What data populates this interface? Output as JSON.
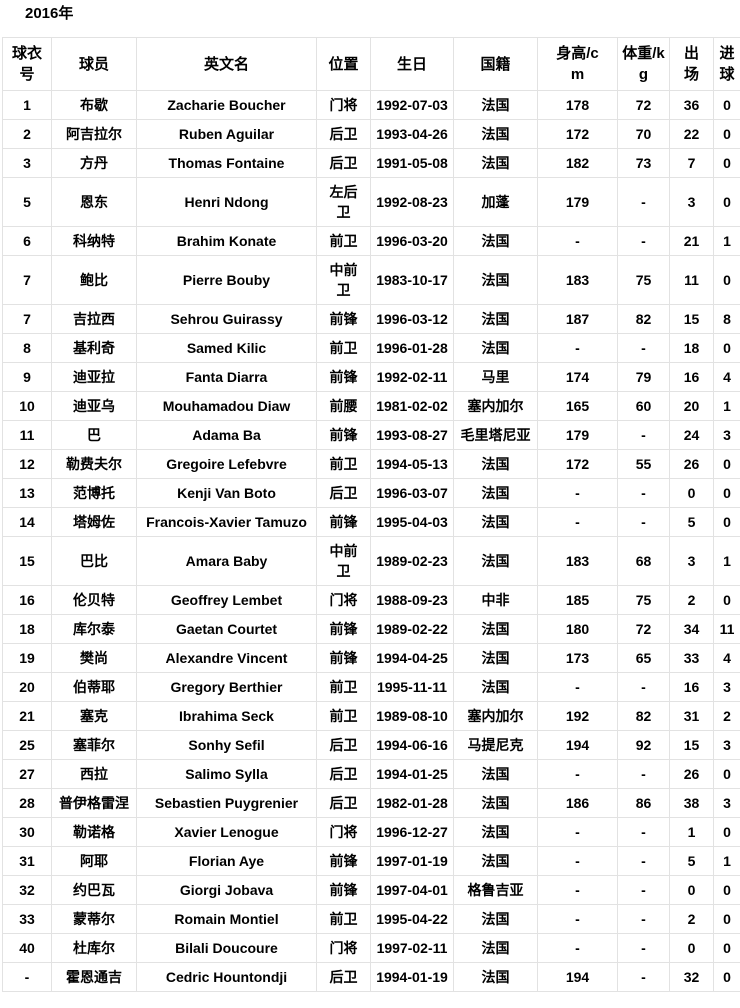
{
  "page": {
    "title": "2016年"
  },
  "table": {
    "columns": [
      {
        "key": "jersey",
        "label": "球衣\n号"
      },
      {
        "key": "player",
        "label": "球员"
      },
      {
        "key": "english_name",
        "label": "英文名"
      },
      {
        "key": "position",
        "label": "位置"
      },
      {
        "key": "birthday",
        "label": "生日"
      },
      {
        "key": "nationality",
        "label": "国籍"
      },
      {
        "key": "height",
        "label": "身高/c\nm"
      },
      {
        "key": "weight",
        "label": "体重/k\ng"
      },
      {
        "key": "appearances",
        "label": "出\n场"
      },
      {
        "key": "goals",
        "label": "进\n球"
      }
    ],
    "rows": [
      [
        "1",
        "布歇",
        "Zacharie Boucher",
        "门将",
        "1992-07-03",
        "法国",
        "178",
        "72",
        "36",
        "0"
      ],
      [
        "2",
        "阿吉拉尔",
        "Ruben Aguilar",
        "后卫",
        "1993-04-26",
        "法国",
        "172",
        "70",
        "22",
        "0"
      ],
      [
        "3",
        "方丹",
        "Thomas Fontaine",
        "后卫",
        "1991-05-08",
        "法国",
        "182",
        "73",
        "7",
        "0"
      ],
      [
        "5",
        "恩东",
        "Henri Ndong",
        "左后\n卫",
        "1992-08-23",
        "加蓬",
        "179",
        "-",
        "3",
        "0"
      ],
      [
        "6",
        "科纳特",
        "Brahim Konate",
        "前卫",
        "1996-03-20",
        "法国",
        "-",
        "-",
        "21",
        "1"
      ],
      [
        "7",
        "鲍比",
        "Pierre Bouby",
        "中前\n卫",
        "1983-10-17",
        "法国",
        "183",
        "75",
        "11",
        "0"
      ],
      [
        "7",
        "吉拉西",
        "Sehrou Guirassy",
        "前锋",
        "1996-03-12",
        "法国",
        "187",
        "82",
        "15",
        "8"
      ],
      [
        "8",
        "基利奇",
        "Samed Kilic",
        "前卫",
        "1996-01-28",
        "法国",
        "-",
        "-",
        "18",
        "0"
      ],
      [
        "9",
        "迪亚拉",
        "Fanta Diarra",
        "前锋",
        "1992-02-11",
        "马里",
        "174",
        "79",
        "16",
        "4"
      ],
      [
        "10",
        "迪亚乌",
        "Mouhamadou Diaw",
        "前腰",
        "1981-02-02",
        "塞内加尔",
        "165",
        "60",
        "20",
        "1"
      ],
      [
        "11",
        "巴",
        "Adama Ba",
        "前锋",
        "1993-08-27",
        "毛里塔尼亚",
        "179",
        "-",
        "24",
        "3"
      ],
      [
        "12",
        "勒费夫尔",
        "Gregoire Lefebvre",
        "前卫",
        "1994-05-13",
        "法国",
        "172",
        "55",
        "26",
        "0"
      ],
      [
        "13",
        "范博托",
        "Kenji Van Boto",
        "后卫",
        "1996-03-07",
        "法国",
        "-",
        "-",
        "0",
        "0"
      ],
      [
        "14",
        "塔姆佐",
        "Francois-Xavier Tamuzo",
        "前锋",
        "1995-04-03",
        "法国",
        "-",
        "-",
        "5",
        "0"
      ],
      [
        "15",
        "巴比",
        "Amara Baby",
        "中前\n卫",
        "1989-02-23",
        "法国",
        "183",
        "68",
        "3",
        "1"
      ],
      [
        "16",
        "伦贝特",
        "Geoffrey Lembet",
        "门将",
        "1988-09-23",
        "中非",
        "185",
        "75",
        "2",
        "0"
      ],
      [
        "18",
        "库尔泰",
        "Gaetan Courtet",
        "前锋",
        "1989-02-22",
        "法国",
        "180",
        "72",
        "34",
        "11"
      ],
      [
        "19",
        "樊尚",
        "Alexandre Vincent",
        "前锋",
        "1994-04-25",
        "法国",
        "173",
        "65",
        "33",
        "4"
      ],
      [
        "20",
        "伯蒂耶",
        "Gregory Berthier",
        "前卫",
        "1995-11-11",
        "法国",
        "-",
        "-",
        "16",
        "3"
      ],
      [
        "21",
        "塞克",
        "Ibrahima Seck",
        "前卫",
        "1989-08-10",
        "塞内加尔",
        "192",
        "82",
        "31",
        "2"
      ],
      [
        "25",
        "塞菲尔",
        "Sonhy Sefil",
        "后卫",
        "1994-06-16",
        "马提尼克",
        "194",
        "92",
        "15",
        "3"
      ],
      [
        "27",
        "西拉",
        "Salimo Sylla",
        "后卫",
        "1994-01-25",
        "法国",
        "-",
        "-",
        "26",
        "0"
      ],
      [
        "28",
        "普伊格雷涅",
        "Sebastien Puygrenier",
        "后卫",
        "1982-01-28",
        "法国",
        "186",
        "86",
        "38",
        "3"
      ],
      [
        "30",
        "勒诺格",
        "Xavier Lenogue",
        "门将",
        "1996-12-27",
        "法国",
        "-",
        "-",
        "1",
        "0"
      ],
      [
        "31",
        "阿耶",
        "Florian Aye",
        "前锋",
        "1997-01-19",
        "法国",
        "-",
        "-",
        "5",
        "1"
      ],
      [
        "32",
        "约巴瓦",
        "Giorgi Jobava",
        "前锋",
        "1997-04-01",
        "格鲁吉亚",
        "-",
        "-",
        "0",
        "0"
      ],
      [
        "33",
        "蒙蒂尔",
        "Romain Montiel",
        "前卫",
        "1995-04-22",
        "法国",
        "-",
        "-",
        "2",
        "0"
      ],
      [
        "40",
        "杜库尔",
        "Bilali Doucoure",
        "门将",
        "1997-02-11",
        "法国",
        "-",
        "-",
        "0",
        "0"
      ],
      [
        "-",
        "霍恩通吉",
        "Cedric Hountondji",
        "后卫",
        "1994-01-19",
        "法国",
        "194",
        "-",
        "32",
        "0"
      ]
    ]
  }
}
